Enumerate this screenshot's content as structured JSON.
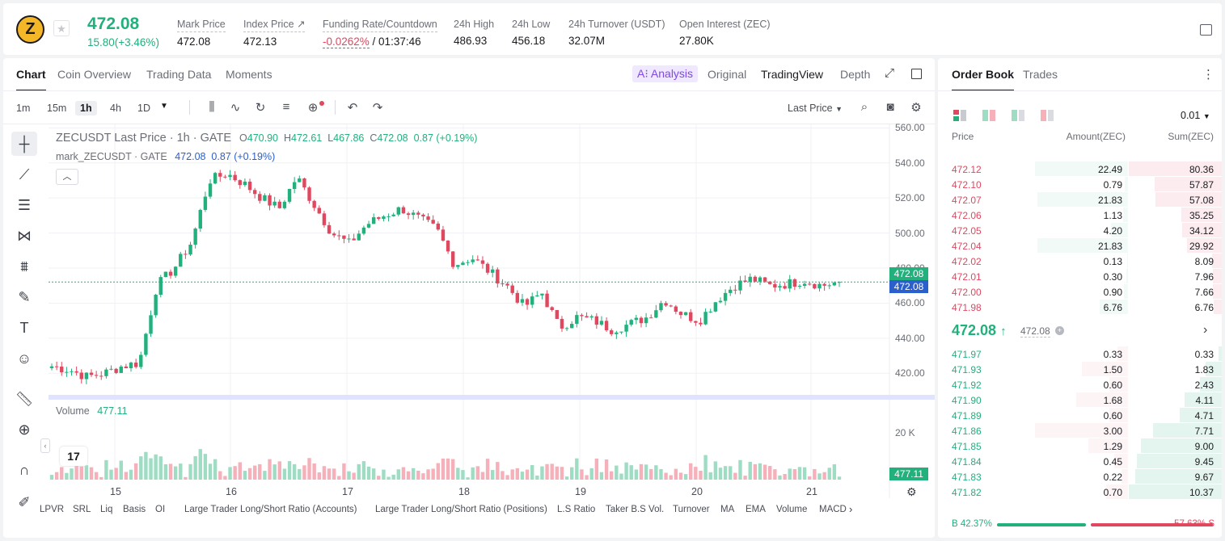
{
  "header": {
    "coin_symbol": "Z",
    "last_price": "472.08",
    "change": "15.80(+3.46%)",
    "stats": [
      {
        "label": "Mark Price",
        "value": "472.08"
      },
      {
        "label": "Index Price ↗",
        "value": "472.13"
      },
      {
        "label": "Funding Rate/Countdown",
        "value_neg": "-0.0262%",
        "value": " / 01:37:46"
      },
      {
        "label": "24h High",
        "value": "486.93"
      },
      {
        "label": "24h Low",
        "value": "456.18"
      },
      {
        "label": "24h Turnover (USDT)",
        "value": "32.07M"
      },
      {
        "label": "Open Interest (ZEC)",
        "value": "27.80K"
      }
    ]
  },
  "chart_panel": {
    "tabs": [
      "Chart",
      "Coin Overview",
      "Trading Data",
      "Moments"
    ],
    "ai_analysis": "A⁝ Analysis",
    "view_modes": [
      "Original",
      "TradingView",
      "Depth"
    ],
    "intervals": [
      "1m",
      "15m",
      "1h",
      "4h",
      "1D"
    ],
    "price_type": "Last Price",
    "legend_title": "ZECUSDT Last Price · 1h · GATE",
    "ohlc": {
      "o": "470.90",
      "h": "472.61",
      "l": "467.86",
      "c": "472.08",
      "chg": "0.87 (+0.19%)"
    },
    "mark_label": "mark_ZECUSDT · GATE",
    "mark_values": "472.08  0.87 (+0.19%)",
    "volume_label": "Volume",
    "volume_value": "477.11",
    "last_price_tag": "472.08",
    "mark_price_tag": "472.08",
    "volume_tag": "477.11",
    "volume_axis": "20 K",
    "y_ticks": [
      "560.00",
      "540.00",
      "520.00",
      "500.00",
      "480.00",
      "460.00",
      "440.00",
      "420.00"
    ],
    "x_ticks": [
      "15",
      "16",
      "17",
      "18",
      "19",
      "20",
      "21"
    ],
    "indicators": [
      "LPVR",
      "SRL",
      "Liq",
      "Basis",
      "OI",
      "Large Trader Long/Short Ratio (Accounts)",
      "Large Trader Long/Short Ratio (Positions)",
      "L.S Ratio",
      "Taker B.S Vol.",
      "Turnover",
      "MA",
      "EMA",
      "Volume",
      "MACD"
    ],
    "tv_logo": "17"
  },
  "chart_data": {
    "type": "candlestick",
    "x_ticks": [
      "15",
      "16",
      "17",
      "18",
      "19",
      "20",
      "21"
    ],
    "ylim": [
      410,
      562
    ],
    "last_close": 472.08,
    "anchor_closes": [
      424,
      422,
      418,
      420,
      424,
      426,
      470,
      480,
      495,
      530,
      534,
      528,
      520,
      514,
      532,
      516,
      500,
      494,
      505,
      510,
      514,
      508,
      502,
      482,
      486,
      478,
      470,
      458,
      466,
      446,
      452,
      450,
      445,
      448,
      452,
      462,
      454,
      450,
      462,
      470,
      474,
      470,
      471,
      473,
      470,
      472.08
    ],
    "colors": {
      "up": "#22b07d",
      "down": "#e0485f"
    }
  },
  "order_book": {
    "tabs": [
      "Order Book",
      "Trades"
    ],
    "precision": "0.01",
    "headers": [
      "Price",
      "Amount(ZEC)",
      "Sum(ZEC)"
    ],
    "asks": [
      {
        "price": "472.12",
        "amount": "22.49",
        "sum": "80.36"
      },
      {
        "price": "472.10",
        "amount": "0.79",
        "sum": "57.87"
      },
      {
        "price": "472.07",
        "amount": "21.83",
        "sum": "57.08"
      },
      {
        "price": "472.06",
        "amount": "1.13",
        "sum": "35.25"
      },
      {
        "price": "472.05",
        "amount": "4.20",
        "sum": "34.12"
      },
      {
        "price": "472.04",
        "amount": "21.83",
        "sum": "29.92"
      },
      {
        "price": "472.02",
        "amount": "0.13",
        "sum": "8.09"
      },
      {
        "price": "472.01",
        "amount": "0.30",
        "sum": "7.96"
      },
      {
        "price": "472.00",
        "amount": "0.90",
        "sum": "7.66"
      },
      {
        "price": "471.98",
        "amount": "6.76",
        "sum": "6.76"
      }
    ],
    "mid_price": "472.08",
    "mid_arrow": "↑",
    "mid_mark": "472.08",
    "bids": [
      {
        "price": "471.97",
        "amount": "0.33",
        "sum": "0.33"
      },
      {
        "price": "471.93",
        "amount": "1.50",
        "sum": "1.83"
      },
      {
        "price": "471.92",
        "amount": "0.60",
        "sum": "2.43"
      },
      {
        "price": "471.90",
        "amount": "1.68",
        "sum": "4.11"
      },
      {
        "price": "471.89",
        "amount": "0.60",
        "sum": "4.71"
      },
      {
        "price": "471.86",
        "amount": "3.00",
        "sum": "7.71"
      },
      {
        "price": "471.85",
        "amount": "1.29",
        "sum": "9.00"
      },
      {
        "price": "471.84",
        "amount": "0.45",
        "sum": "9.45"
      },
      {
        "price": "471.83",
        "amount": "0.22",
        "sum": "9.67"
      },
      {
        "price": "471.82",
        "amount": "0.70",
        "sum": "10.37"
      }
    ],
    "ratio_buy": "B 42.37%",
    "ratio_sell": "57.63% S",
    "ratio_buy_value": 42.37
  }
}
